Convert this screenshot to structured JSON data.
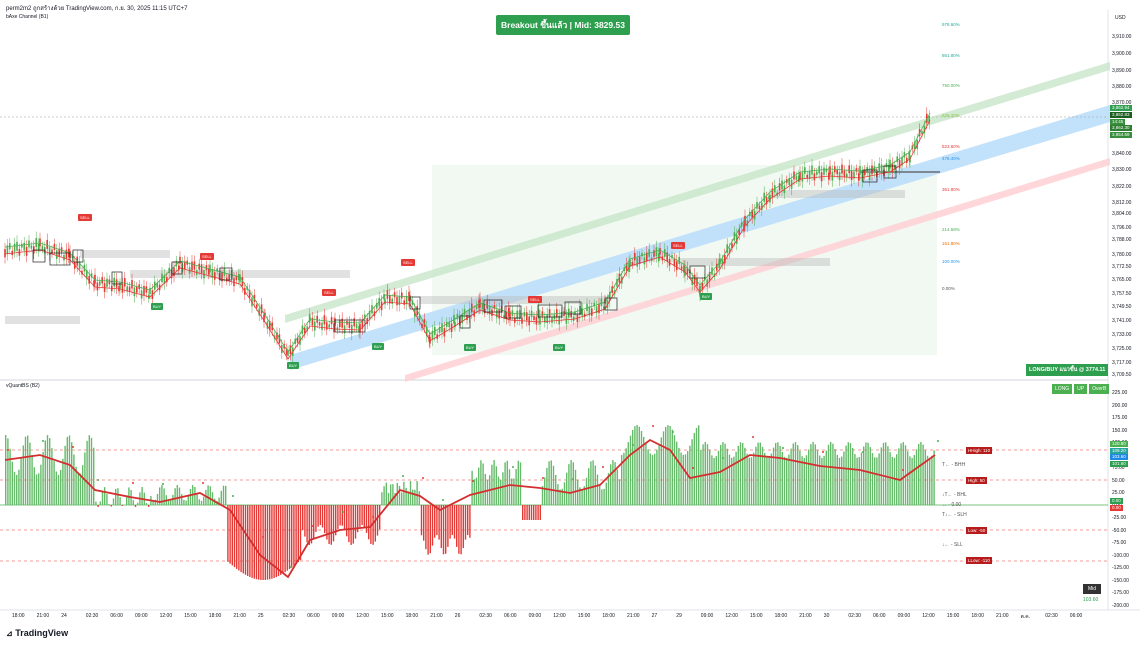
{
  "header": {
    "text": "perm2m2 ถูกสร้างด้วย TradingView.com, ก.ย. 30, 2025 11:15 UTC+7"
  },
  "upper_pane": {
    "indicator_label": "bAxe Channel (B1)",
    "currency": "USD",
    "breakout_banner": "Breakout ขึ้นแล้ว | Mid: 3829.53",
    "long_banner": "LONG/BUY แนวขึ้น @ 3774.11",
    "price_axis": [
      "3,910.00",
      "3,900.00",
      "3,890.00",
      "3,880.00",
      "3,870.00",
      "3,840.00",
      "3,830.00",
      "3,822.00",
      "3,812.00",
      "3,804.00",
      "3,796.00",
      "3,788.00",
      "3,780.00",
      "3,772.50",
      "3,765.00",
      "3,757.50",
      "3,749.50",
      "3,741.00",
      "3,733.00",
      "3,725.00",
      "3,717.00",
      "3,709.50"
    ],
    "price_tags": [
      "3,862.94",
      "3,862.83",
      "14:45",
      "3,862.30",
      "3,854.69"
    ],
    "fib_labels": [
      "978.60%",
      "861.80%",
      "750.00%",
      "638.20%",
      "523.60%",
      "476.40%",
      "361.80%",
      "214.58%",
      "161.80%",
      "100.00%",
      "0.00%"
    ],
    "sell_tags": [
      "SELL",
      "SELL",
      "SELL",
      "SELL",
      "SELL",
      "SELL"
    ],
    "buy_tags": [
      "BUY",
      "BUY",
      "BUY",
      "BUY",
      "BUY",
      "BUY",
      "BUY"
    ]
  },
  "lower_pane": {
    "indicator_label": "vQuantBS (B2)",
    "status_badges": [
      "LONG",
      "UP",
      "OverB"
    ],
    "value_axis": [
      "225.00",
      "200.00",
      "175.00",
      "150.00",
      "125.00",
      "100.00",
      "75.00",
      "50.00",
      "25.00",
      "0.00",
      "-25.00",
      "-50.00",
      "-75.00",
      "-100.00",
      "-125.00",
      "-150.00",
      "-175.00",
      "-200.00"
    ],
    "value_tags": [
      "120.80",
      "109.20",
      "103.60",
      "101.60"
    ],
    "zero_tags": [
      "0.00",
      "0.00"
    ],
    "level_boxes": [
      "HHigh: 110",
      "High: 50",
      "Low: -50",
      "LLow: -110"
    ],
    "side_text": [
      "T← - BHH",
      "↓T← - BHL",
      "↔ - 0.00",
      "T↓← - SLH",
      "↓← - SLL"
    ],
    "mid_label": "Mid",
    "mid_value": "103.60"
  },
  "time_axis": [
    "18:00",
    "21:00",
    "24",
    "02:30",
    "06:00",
    "09:00",
    "12:00",
    "15:00",
    "18:00",
    "21:00",
    "25",
    "02:30",
    "06:00",
    "09:00",
    "12:00",
    "15:00",
    "18:00",
    "21:00",
    "26",
    "02:30",
    "06:00",
    "09:00",
    "12:00",
    "15:00",
    "18:00",
    "21:00",
    "27",
    "29",
    "09:00",
    "12:00",
    "15:00",
    "18:00",
    "21:00",
    "30",
    "02:30",
    "06:00",
    "09:00",
    "12:00",
    "15:00",
    "18:00",
    "21:00",
    "ต.ค.",
    "02:30",
    "06:00"
  ],
  "brand": "TradingView",
  "colors": {
    "up": "#4caf50",
    "down": "#e53935",
    "accent": "#2e9e4f",
    "channel_mid": "#90caf9"
  }
}
